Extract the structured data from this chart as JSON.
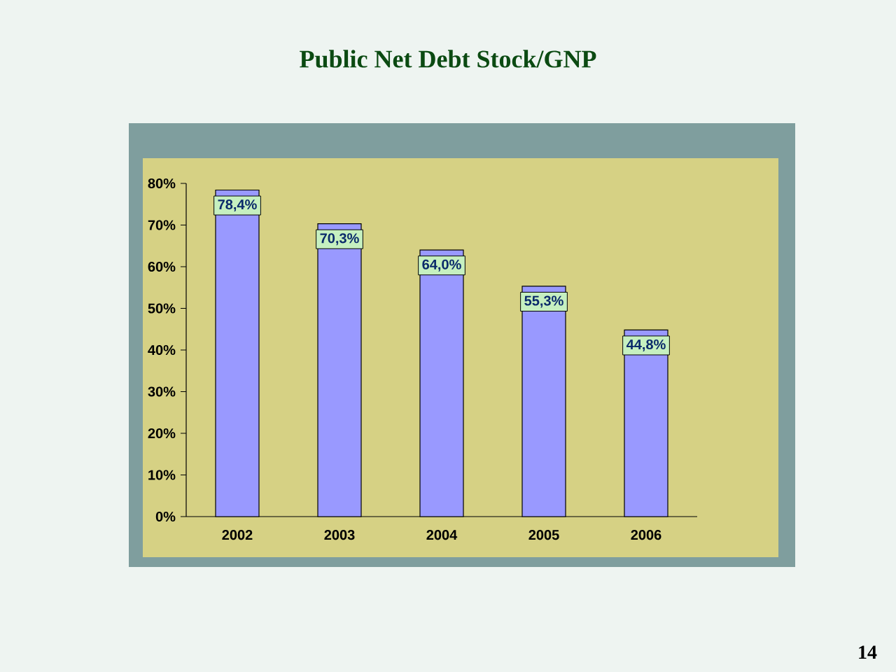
{
  "chart_data": {
    "type": "bar",
    "title": "Public Net Debt Stock/GNP",
    "categories": [
      "2002",
      "2003",
      "2004",
      "2005",
      "2006"
    ],
    "values": [
      78.4,
      70.3,
      64.0,
      55.3,
      44.8
    ],
    "value_labels": [
      "78,4%",
      "70,3%",
      "64,0%",
      "55,3%",
      "44,8%"
    ],
    "color": "#9999ff",
    "ylim": [
      0,
      80
    ],
    "yticks": [
      {
        "value": 0,
        "label": "0%"
      },
      {
        "value": 10,
        "label": "10%"
      },
      {
        "value": 20,
        "label": "20%"
      },
      {
        "value": 30,
        "label": "30%"
      },
      {
        "value": 40,
        "label": "40%"
      },
      {
        "value": 50,
        "label": "50%"
      },
      {
        "value": 60,
        "label": "60%"
      },
      {
        "value": 70,
        "label": "70%"
      },
      {
        "value": 80,
        "label": "80%"
      }
    ],
    "annotations": [
      "14"
    ]
  }
}
